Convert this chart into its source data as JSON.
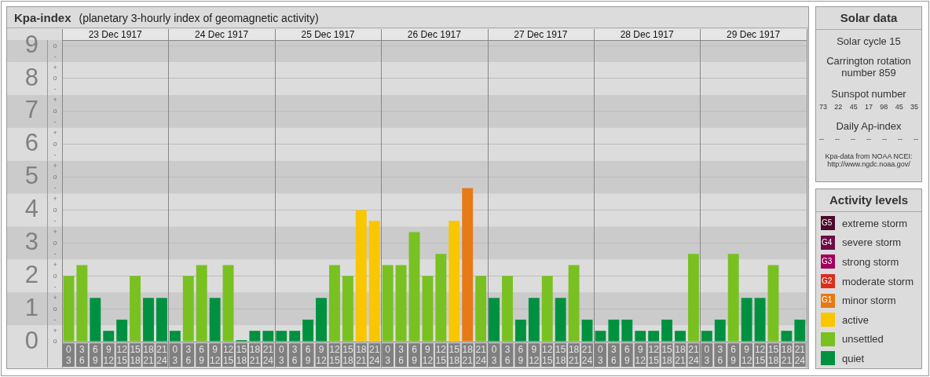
{
  "chart_data": [
    {
      "type": "bar",
      "title": "Kpa-index",
      "subtitle": "(planetary 3-hourly index of geomagnetic activity)",
      "legend_title": "Activity levels",
      "legend": "right",
      "grid": "y",
      "categories": [
        "0\n3",
        "3\n6",
        "6\n9",
        "9\n12",
        "12\n15",
        "15\n18",
        "18\n21",
        "21\n24",
        "0\n3",
        "3\n6",
        "6\n9",
        "9\n12",
        "12\n15",
        "15\n18",
        "18\n21",
        "21\n24",
        "0\n3",
        "3\n6",
        "6\n9",
        "9\n12",
        "12\n15",
        "15\n18",
        "18\n21",
        "21\n24",
        "0\n3",
        "3\n6",
        "6\n9",
        "9\n12",
        "12\n15",
        "15\n18",
        "18\n21",
        "21\n24",
        "0\n3",
        "3\n6",
        "6\n9",
        "9\n12",
        "12\n15",
        "15\n18",
        "18\n21",
        "21\n24",
        "0\n3",
        "3\n6",
        "6\n9",
        "9\n12",
        "12\n15",
        "15\n18",
        "18\n21",
        "21\n24",
        "0\n3",
        "3\n6",
        "6\n9",
        "9\n12",
        "12\n15",
        "15\n18",
        "18\n21",
        "21\n24"
      ],
      "annotations": [
        "23 Dec 1917",
        "24 Dec 1917",
        "25 Dec 1917",
        "26 Dec 1917",
        "27 Dec 1917",
        "28 Dec 1917",
        "29 Dec 1917",
        "o",
        "+",
        "-",
        "o",
        "+",
        "-",
        "o",
        "+",
        "-",
        "o",
        "+",
        "-",
        "o",
        "+",
        "-",
        "o",
        "+",
        "-",
        "o",
        "+",
        "-",
        "o",
        "+",
        "-",
        "o",
        "+",
        "-",
        "o"
      ],
      "ylim": [
        0,
        9.17
      ],
      "yticks": [
        0,
        1,
        2,
        3,
        4,
        5,
        6,
        7,
        8,
        9
      ],
      "bands": [
        {
          "axis": "y",
          "from": 0.5,
          "to": 1.5,
          "color": "#cbcbcb"
        },
        {
          "axis": "y",
          "from": 2.5,
          "to": 3.5,
          "color": "#cbcbcb"
        },
        {
          "axis": "y",
          "from": 4.5,
          "to": 5.5,
          "color": "#cbcbcb"
        },
        {
          "axis": "y",
          "from": 6.5,
          "to": 7.5,
          "color": "#cbcbcb"
        },
        {
          "axis": "y",
          "from": 8.5,
          "to": 9.17,
          "color": "#cbcbcb"
        }
      ],
      "series": [
        {
          "name": "G5 extreme storm",
          "color": "#4b0a2a",
          "values": [
            null,
            null,
            null,
            null,
            null,
            null,
            null,
            null,
            null,
            null,
            null,
            null,
            null,
            null,
            null,
            null,
            null,
            null,
            null,
            null,
            null,
            null,
            null,
            null,
            null,
            null,
            null,
            null,
            null,
            null,
            null,
            null,
            null,
            null,
            null,
            null,
            null,
            null,
            null,
            null,
            null,
            null,
            null,
            null,
            null,
            null,
            null,
            null,
            null,
            null,
            null,
            null,
            null,
            null,
            null,
            null
          ]
        },
        {
          "name": "G4 severe storm",
          "color": "#6e0c45",
          "values": [
            null,
            null,
            null,
            null,
            null,
            null,
            null,
            null,
            null,
            null,
            null,
            null,
            null,
            null,
            null,
            null,
            null,
            null,
            null,
            null,
            null,
            null,
            null,
            null,
            null,
            null,
            null,
            null,
            null,
            null,
            null,
            null,
            null,
            null,
            null,
            null,
            null,
            null,
            null,
            null,
            null,
            null,
            null,
            null,
            null,
            null,
            null,
            null,
            null,
            null,
            null,
            null,
            null,
            null,
            null,
            null
          ]
        },
        {
          "name": "G3 strong storm",
          "color": "#a0005c",
          "values": [
            null,
            null,
            null,
            null,
            null,
            null,
            null,
            null,
            null,
            null,
            null,
            null,
            null,
            null,
            null,
            null,
            null,
            null,
            null,
            null,
            null,
            null,
            null,
            null,
            null,
            null,
            null,
            null,
            null,
            null,
            null,
            null,
            null,
            null,
            null,
            null,
            null,
            null,
            null,
            null,
            null,
            null,
            null,
            null,
            null,
            null,
            null,
            null,
            null,
            null,
            null,
            null,
            null,
            null,
            null,
            null
          ]
        },
        {
          "name": "G2 moderate storm",
          "color": "#d9301c",
          "values": [
            null,
            null,
            null,
            null,
            null,
            null,
            null,
            null,
            null,
            null,
            null,
            null,
            null,
            null,
            null,
            null,
            null,
            null,
            null,
            null,
            null,
            null,
            null,
            null,
            null,
            null,
            null,
            null,
            null,
            null,
            null,
            null,
            null,
            null,
            null,
            null,
            null,
            null,
            null,
            null,
            null,
            null,
            null,
            null,
            null,
            null,
            null,
            null,
            null,
            null,
            null,
            null,
            null,
            null,
            null,
            null
          ]
        },
        {
          "name": "G1 minor storm",
          "color": "#e67a17",
          "values": [
            null,
            null,
            null,
            null,
            null,
            null,
            null,
            null,
            null,
            null,
            null,
            null,
            null,
            null,
            null,
            null,
            null,
            null,
            null,
            null,
            null,
            null,
            null,
            null,
            null,
            null,
            null,
            null,
            null,
            null,
            4.67,
            null,
            null,
            null,
            null,
            null,
            null,
            null,
            null,
            null,
            null,
            null,
            null,
            null,
            null,
            null,
            null,
            null,
            null,
            null,
            null,
            null,
            null,
            null,
            null,
            null
          ]
        },
        {
          "name": "active",
          "color": "#f9c600",
          "values": [
            null,
            null,
            null,
            null,
            null,
            null,
            null,
            null,
            null,
            null,
            null,
            null,
            null,
            null,
            null,
            null,
            null,
            null,
            null,
            null,
            null,
            null,
            4,
            3.67,
            null,
            null,
            null,
            null,
            null,
            3.67,
            null,
            null,
            null,
            null,
            null,
            null,
            null,
            null,
            null,
            null,
            null,
            null,
            null,
            null,
            null,
            null,
            null,
            null,
            null,
            null,
            null,
            null,
            null,
            null,
            null,
            null
          ]
        },
        {
          "name": "unsettled",
          "color": "#79c021",
          "values": [
            2,
            2.33,
            null,
            null,
            null,
            2,
            null,
            null,
            null,
            2,
            2.33,
            null,
            2.33,
            null,
            null,
            null,
            null,
            null,
            null,
            null,
            2.33,
            2,
            null,
            null,
            2.33,
            2.33,
            3.33,
            2,
            2.67,
            null,
            null,
            2,
            null,
            2,
            null,
            null,
            2,
            null,
            2.33,
            null,
            null,
            null,
            null,
            null,
            null,
            null,
            null,
            2.67,
            null,
            null,
            2.67,
            null,
            null,
            2.33,
            null,
            null
          ]
        },
        {
          "name": "quiet",
          "color": "#009140",
          "values": [
            null,
            null,
            1.33,
            0.33,
            0.67,
            null,
            1.33,
            1.33,
            0.33,
            null,
            null,
            1.33,
            null,
            0,
            0.33,
            0.33,
            0.33,
            0.33,
            0.67,
            1.33,
            null,
            null,
            null,
            null,
            null,
            null,
            null,
            null,
            null,
            null,
            null,
            null,
            1.33,
            null,
            0.67,
            1.33,
            null,
            1.33,
            null,
            0.67,
            0.33,
            0.67,
            0.67,
            0.33,
            0.33,
            0.67,
            0.33,
            null,
            0.33,
            0.67,
            null,
            1.33,
            1.33,
            null,
            0.33,
            0.67
          ]
        }
      ]
    },
    {
      "type": "other",
      "title": "Solar data",
      "annotations": [
        "Solar cycle 15",
        "Carrington rotation number 859",
        "Sunspot number",
        "73 22 45 17 98 45 35",
        "Daily Ap-index",
        "-- -- -- -- -- -- --",
        "Kpa-data from NOAA NCEI: http://www.ngdc.noaa.gov/"
      ]
    }
  ]
}
